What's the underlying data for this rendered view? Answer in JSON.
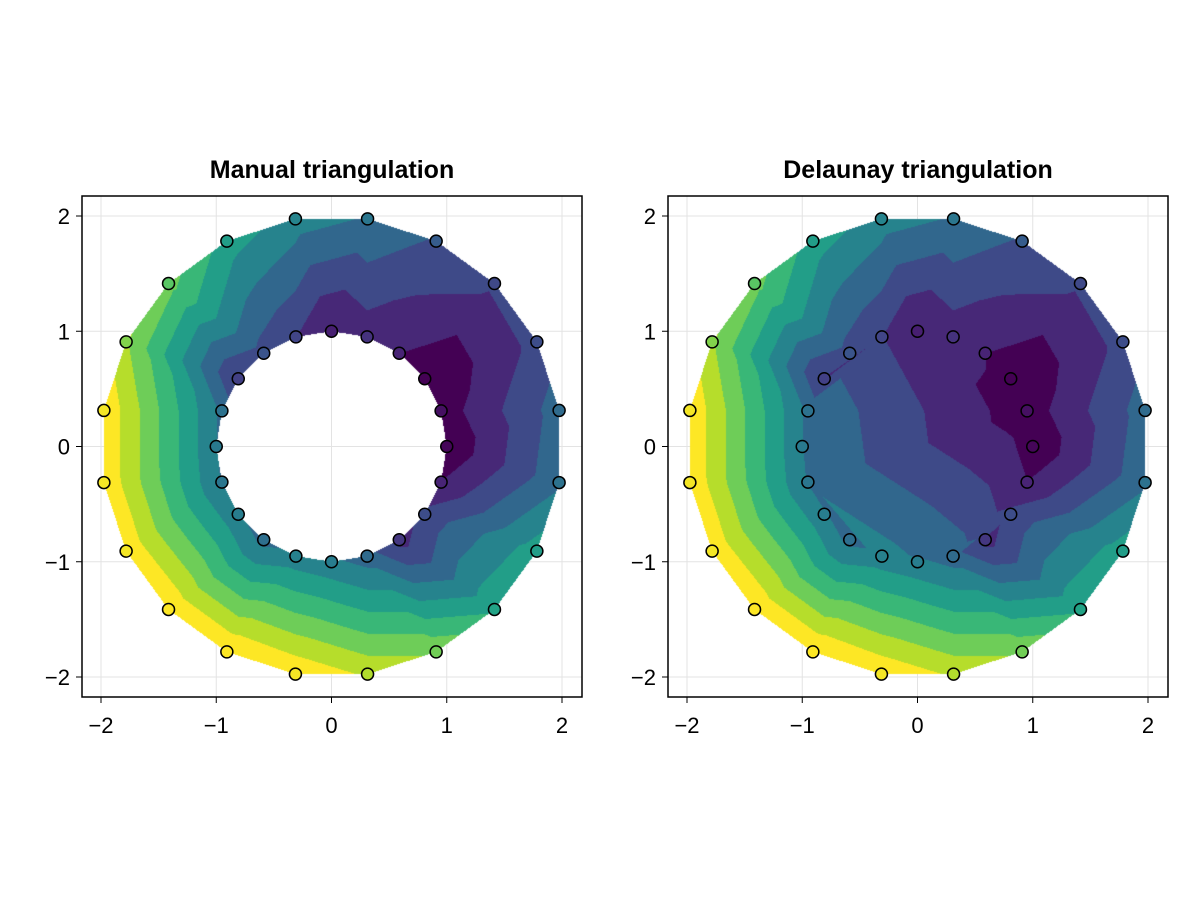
{
  "chart_data": [
    {
      "type": "tricontourf",
      "title": "Manual triangulation",
      "triangulation": "manual",
      "xlim": [
        -2.2,
        2.2
      ],
      "ylim": [
        -2.2,
        2.2
      ],
      "xticks": [
        "−2",
        "−1",
        "0",
        "1",
        "2"
      ],
      "yticks": [
        "−2",
        "−1",
        "0",
        "1",
        "2"
      ],
      "grid": true,
      "levels": 10,
      "colormap": "viridis"
    },
    {
      "type": "tricontourf",
      "title": "Delaunay triangulation",
      "triangulation": "delaunay",
      "xlim": [
        -2.2,
        2.2
      ],
      "ylim": [
        -2.2,
        2.2
      ],
      "xticks": [
        "−2",
        "−1",
        "0",
        "1",
        "2"
      ],
      "yticks": [
        "−2",
        "−1",
        "0",
        "1",
        "2"
      ],
      "grid": true,
      "levels": 10,
      "colormap": "viridis"
    }
  ],
  "points": {
    "inner": {
      "x": [
        1.0,
        0.951,
        0.809,
        0.588,
        0.309,
        0.0,
        -0.309,
        -0.588,
        -0.809,
        -0.951,
        -1.0,
        -0.951,
        -0.809,
        -0.588,
        -0.309,
        0.0,
        0.309,
        0.588,
        0.809,
        0.951
      ],
      "y": [
        0.0,
        0.309,
        0.588,
        0.809,
        0.951,
        1.0,
        0.951,
        0.809,
        0.588,
        0.309,
        0.0,
        -0.309,
        -0.588,
        -0.809,
        -0.951,
        -1.0,
        -0.951,
        -0.809,
        -0.588,
        -0.309
      ],
      "z": [
        0.3,
        0.5,
        0.2,
        0.9,
        1.2,
        0.8,
        1.6,
        2.0,
        1.5,
        2.8,
        3.0,
        2.9,
        3.1,
        2.7,
        3.2,
        3.1,
        2.6,
        1.3,
        1.8,
        0.9
      ]
    },
    "outer": {
      "x": [
        1.975,
        1.782,
        1.414,
        0.908,
        0.313,
        -0.313,
        -0.908,
        -1.414,
        -1.782,
        -1.975,
        -1.975,
        -1.782,
        -1.414,
        -0.908,
        -0.313,
        0.313,
        0.908,
        1.414,
        1.782,
        1.975
      ],
      "y": [
        0.313,
        0.908,
        1.414,
        1.782,
        1.975,
        1.975,
        1.782,
        1.414,
        0.908,
        0.313,
        -0.313,
        -0.908,
        -1.414,
        -1.782,
        -1.975,
        -1.975,
        -1.782,
        -1.414,
        -0.908,
        -0.313
      ],
      "z": [
        2.6,
        1.8,
        1.7,
        2.2,
        2.9,
        3.3,
        4.0,
        5.3,
        5.8,
        7.0,
        7.0,
        7.0,
        7.1,
        7.1,
        7.0,
        6.3,
        5.6,
        4.2,
        4.0,
        2.8
      ]
    }
  },
  "colors": {
    "viridis": [
      "#440154",
      "#482475",
      "#414487",
      "#355f8d",
      "#2a788e",
      "#21918c",
      "#22a884",
      "#44bf70",
      "#7ad151",
      "#bddf26",
      "#fde725"
    ]
  }
}
